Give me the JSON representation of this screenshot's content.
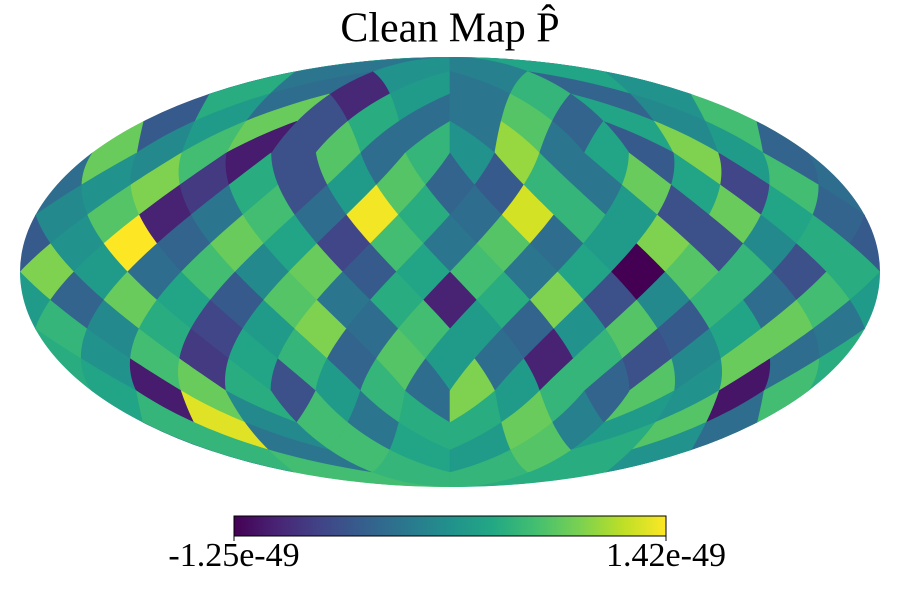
{
  "chart_data": {
    "type": "healpix_map",
    "title": "Clean Map P̂",
    "projection": "mollweide",
    "cmap": "viridis",
    "colorbar_range": [
      -1.25e-49,
      1.42e-49
    ],
    "values": [
      1e-50,
      -2e-50,
      3e-50,
      -1e-50,
      2e-50,
      -9.5e-50,
      -3e-50,
      4e-50,
      1e-50,
      -4e-50,
      5e-50,
      -2e-50,
      -3e-50,
      4e-50,
      -6e-50,
      8e-50,
      2e-50,
      -5e-50,
      6e-50,
      0,
      3e-50,
      -4e-50,
      7e-50,
      -2e-50,
      5e-50,
      -3e-50,
      7e-50,
      -6e-50,
      -1.05e-49,
      6e-50,
      0,
      8e-50,
      -4e-50,
      2e-50,
      9e-50,
      -5e-50,
      3e-50,
      -2e-50,
      1e-49,
      1e-50,
      -4e-50,
      7e-50,
      2e-50,
      -6e-50,
      4e-50,
      -8e-50,
      9e-50,
      1e-50,
      -3e-50,
      6e-50,
      -7e-50,
      3e-50,
      8e-50,
      -2e-50,
      5e-50,
      -5e-50,
      4e-50,
      1.38e-49,
      -3e-50,
      6e-50,
      -2e-50,
      -1e-49,
      7e-50,
      0,
      -4e-50,
      3e-50,
      8e-50,
      -6e-50,
      2e-50,
      5e-50,
      1.25e-49,
      -3e-50,
      -2e-50,
      6e-50,
      -7e-50,
      3e-50,
      8e-50,
      -4e-50,
      1.42e-49,
      1e-50,
      -5e-50,
      4e-50,
      0,
      -6e-50,
      9e-50,
      2e-50,
      -3e-50,
      7e-50,
      3e-50,
      -5e-50,
      8e-50,
      0,
      6e-50,
      -3e-50,
      2e-50,
      9e-50,
      4e-50,
      -6e-50,
      5e-50,
      7e-50,
      -1.25e-49,
      3e-50,
      -2e-50,
      6e-50,
      -1e-49,
      4e-50,
      -2e-50,
      7e-50,
      -5e-50,
      3e-50,
      8e-50,
      -4e-50,
      2e-50,
      6e-50,
      -3e-50,
      5e-50,
      0,
      -6e-50,
      9e-50,
      4e-50,
      6e-50,
      -3e-50,
      9e-50,
      2e-50,
      -7e-50,
      4e-50,
      0,
      5e-50,
      -2e-50,
      8e-50,
      3e-50,
      -5e-50,
      7e-50,
      1e-50,
      -4e-50,
      2e-50,
      2e-50,
      7e-50,
      -4e-50,
      5e-50,
      3e-50,
      -8e-50,
      6e-50,
      1e-50,
      4e-50,
      -3e-50,
      8e-50,
      0,
      -6e-50,
      5e-50,
      -1e-49,
      -3e-50,
      -3e-50,
      5e-50,
      2e-50,
      -6e-50,
      4e-50,
      8e-50,
      -1.05e-49,
      3e-50,
      6e-50,
      -1.1e-49,
      1e-50,
      7e-50,
      -4e-50,
      5e-50,
      2e-50,
      9e-50,
      4e-50,
      -2e-50,
      6e-50,
      0,
      1.3e-49,
      5e-50,
      -3e-50,
      7e-50,
      2e-50,
      -1e-50,
      8e-50,
      4e-50,
      3e-50,
      6e-50,
      -2e-50,
      5e-50,
      1e-50,
      4e-50,
      7e-50,
      2e-50,
      5e-50,
      6e-50,
      4e-50,
      5e-50
    ]
  }
}
